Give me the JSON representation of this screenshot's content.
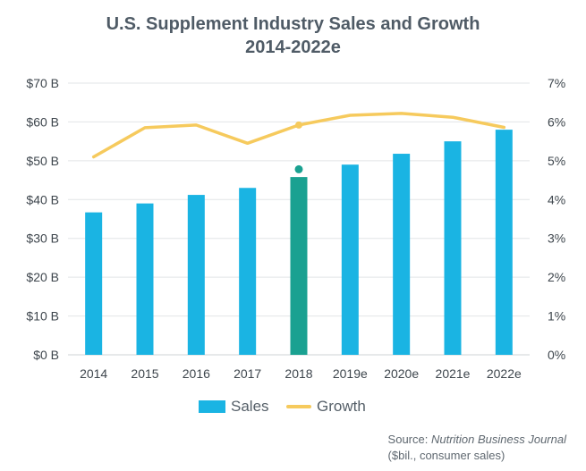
{
  "chart_data": {
    "type": "bar",
    "title_line1": "U.S. Supplement Industry Sales and Growth",
    "title_line2": "2014-2022e",
    "categories": [
      "2014",
      "2015",
      "2016",
      "2017",
      "2018",
      "2019e",
      "2020e",
      "2021e",
      "2022e"
    ],
    "series": [
      {
        "name": "Sales",
        "type": "bar",
        "axis": "left",
        "color": "#1ab4e3",
        "highlight_color": "#1aa191",
        "highlight_index": 4,
        "values": [
          36.7,
          39.0,
          41.2,
          43.0,
          45.8,
          49.0,
          51.8,
          55.0,
          58.0
        ]
      },
      {
        "name": "Growth",
        "type": "line",
        "axis": "right",
        "color": "#f6ca5d",
        "values": [
          5.1,
          5.85,
          5.92,
          5.45,
          5.92,
          6.17,
          6.22,
          6.12,
          5.86
        ]
      }
    ],
    "highlight_marker": {
      "index": 4,
      "value": 47.8,
      "color": "#1aa191"
    },
    "y_left": {
      "ylim": [
        0,
        70
      ],
      "ticks": [
        "$0 B",
        "$10 B",
        "$20 B",
        "$30 B",
        "$40 B",
        "$50 B",
        "$60 B",
        "$70 B"
      ]
    },
    "y_right": {
      "ylim": [
        0,
        7
      ],
      "ticks": [
        "0%",
        "1%",
        "2%",
        "3%",
        "4%",
        "5%",
        "6%",
        "7%"
      ]
    },
    "grid": true,
    "legend": [
      "Sales",
      "Growth"
    ],
    "legend_placement": "bottom"
  },
  "source": {
    "prefix": "Source: ",
    "publication": "Nutrition Business Journal",
    "note": "($bil., consumer sales)"
  }
}
